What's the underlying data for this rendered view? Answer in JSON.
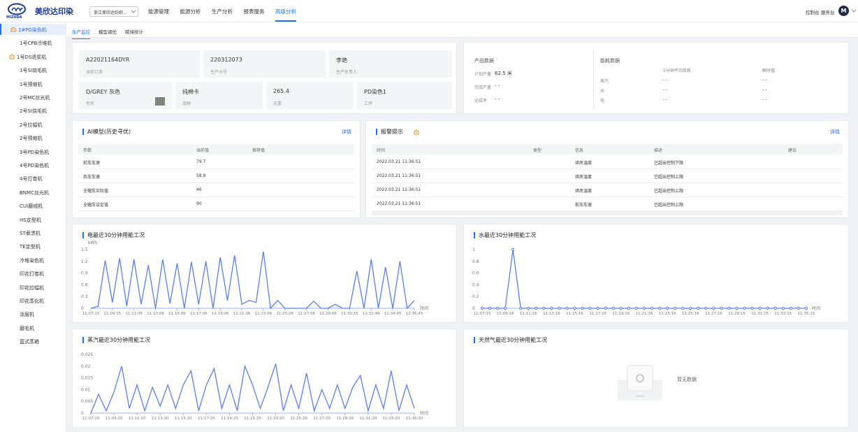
{
  "header": {
    "logo_title": "美欣达印染",
    "logo_sub": "MIZUDA",
    "factory": "浙江美欣达纺织...",
    "nav": [
      "能源管理",
      "能源分析",
      "生产分析",
      "报表服务",
      "高级分析"
    ],
    "right_links": [
      "控制台",
      "服务台"
    ],
    "avatar": "M"
  },
  "sidebar": [
    "1#PD染色机",
    "1号CPB冷堆机",
    "1号DS退浆机",
    "1号SI烧毛机",
    "1号预缩机",
    "2号MC丝光机",
    "2号SI烧毛机",
    "2号拉幅机",
    "2号预缩机",
    "3号PD染色机",
    "4号PD染色机",
    "4号打卷机",
    "BNMC丝光机",
    "CUI磨绒机",
    "HS定型机",
    "ST煮漂机",
    "TE定型机",
    "冷堆染色机",
    "印花打卷机",
    "印花拉幅机",
    "印花蒸化机",
    "涂层机",
    "磨毛机",
    "蓝式蒸箱"
  ],
  "tabs": [
    "生产监控",
    "模型调优",
    "碳排统计"
  ],
  "production": {
    "cards": [
      {
        "value": "A22021164DYR",
        "label": "当前订单"
      },
      {
        "value": "220312073",
        "label": "生产卡号"
      },
      {
        "value": "李艳",
        "label": "生产负责人"
      },
      {
        "value": "D/GREY 灰色",
        "label": "色名"
      },
      {
        "value": "纯棉卡",
        "label": "品种"
      },
      {
        "value": "265.4",
        "label": "克重"
      },
      {
        "value": "PD染色1",
        "label": "工序"
      }
    ]
  },
  "product_data": {
    "title": "产品数据",
    "rows": [
      {
        "label": "计划产量",
        "value": "62.5 米"
      },
      {
        "label": "完成产量",
        "value": "- -"
      },
      {
        "label": "达成率",
        "value": "- -"
      }
    ]
  },
  "energy_data": {
    "title": "能耗数据",
    "headers": [
      "5分钟平均单耗",
      "瞬时值"
    ],
    "rows": [
      [
        "蒸汽",
        "- -",
        "- -"
      ],
      [
        "水",
        "- -",
        "- -"
      ],
      [
        "电",
        "- -",
        "- -"
      ]
    ]
  },
  "ai_model": {
    "title": "AI模型(历史寻优)",
    "link": "详情",
    "headers": [
      "参数",
      "当前值",
      "推荐值"
    ],
    "rows": [
      [
        "前车车速",
        "79.7"
      ],
      [
        "后车车速",
        "58.9"
      ],
      [
        "全幅车实际值",
        "46"
      ],
      [
        "全幅车设定值",
        "90"
      ]
    ]
  },
  "alarms": {
    "title": "报警提示",
    "link": "详情",
    "headers": [
      "时间",
      "类型",
      "信息",
      "描述",
      "建议"
    ],
    "rows": [
      [
        "2022.03.21 11:36:51",
        "烘房温度",
        "已超出控制下限"
      ],
      [
        "2022.03.21 11:36:51",
        "烘房温度",
        "已超出控制上限"
      ],
      [
        "2022.03.21 11:36:51",
        "烘房温度",
        "已超出控制上限"
      ],
      [
        "2022.03.21 11:36:51",
        "前车车速",
        "已超出控制上限"
      ]
    ]
  },
  "chart_data": [
    {
      "type": "line",
      "title": "电最近30分钟用能工况",
      "y_unit": "kWh",
      "x_label": "时间",
      "color": "#5b7fe6",
      "show_points": false,
      "categories": [
        "11:07:15",
        null,
        null,
        "11:09:15",
        null,
        null,
        "11:11:06",
        null,
        null,
        "11:13:06",
        null,
        null,
        "11:15:06",
        null,
        null,
        "11:17:06",
        null,
        null,
        "11:19:06",
        null,
        null,
        "11:21:06",
        null,
        null,
        "11:23:06",
        null,
        null,
        "11:25:06",
        null,
        null,
        "11:27:06",
        null,
        null,
        "11:29:06",
        null,
        null,
        "11:30:55",
        null,
        null,
        "11:32:46",
        null,
        null,
        "11:34:45",
        null,
        null,
        "11:36:45"
      ],
      "values": [
        0,
        0.05,
        1.22,
        0.15,
        1.28,
        0.05,
        1.25,
        0.1,
        1.1,
        0,
        1.25,
        0.12,
        1.15,
        0,
        1.18,
        0.1,
        1.2,
        0,
        1.3,
        0.2,
        1.35,
        0.1,
        0.2,
        0.15,
        1.45,
        0,
        0.2,
        0,
        0,
        0,
        0,
        0.18,
        0,
        0,
        0.1,
        0,
        0,
        0.95,
        0,
        1.25,
        0,
        1.05,
        0,
        1.2,
        0,
        0.2
      ],
      "ylim": [
        0,
        1.5
      ],
      "yticks": [
        0,
        0.3,
        0.6,
        0.9,
        1.2,
        1.5
      ]
    },
    {
      "type": "line",
      "title": "水最近30分钟用能工况",
      "x_label": "时间",
      "color": "#5b7fe6",
      "show_points": true,
      "categories": [
        "11:07:15",
        null,
        null,
        "11:09:16",
        null,
        null,
        "11:11:16",
        null,
        null,
        "11:13:16",
        null,
        null,
        "11:15:16",
        null,
        null,
        "11:17:16",
        null,
        null,
        "11:19:16",
        null,
        null,
        "11:21:16",
        null,
        null,
        "11:23:16",
        null,
        null,
        "11:25:16",
        null,
        null,
        "11:27:16",
        null,
        null,
        "11:29:15",
        null,
        null,
        "11:31:15",
        null,
        null,
        "11:33:15",
        null,
        null,
        "11:35:15"
      ],
      "values": [
        0,
        0,
        0,
        0,
        1,
        0,
        0,
        0,
        0,
        0,
        0,
        0,
        0,
        0,
        0,
        0,
        0,
        0,
        0,
        0,
        0,
        0,
        0,
        0,
        0,
        0,
        0,
        0,
        0,
        0,
        0,
        0,
        0,
        0,
        0,
        0,
        0,
        0,
        0,
        0,
        0,
        0,
        0
      ],
      "ylim": [
        0,
        1
      ],
      "yticks": [
        0,
        0.2,
        0.4,
        0.6,
        0.8,
        1
      ]
    },
    {
      "type": "line",
      "title": "蒸汽最近30分钟用能工况",
      "x_label": "时间",
      "color": "#5b7fe6",
      "show_points": false,
      "categories": [
        "11:07:20",
        null,
        null,
        "11:09:20",
        null,
        null,
        "11:11:20",
        null,
        null,
        "11:13:20",
        null,
        null,
        "11:15:20",
        null,
        null,
        "11:17:20",
        null,
        null,
        "11:19:20",
        null,
        null,
        "11:21:20",
        null,
        null,
        "11:23:20",
        null,
        null,
        "11:25:20",
        null,
        null,
        "11:27:20",
        null,
        null,
        "11:29:20",
        null,
        null,
        "11:31:20",
        null,
        null,
        "11:33:20",
        null,
        null,
        "11:35:20"
      ],
      "values": [
        0,
        0.008,
        0.001,
        0.009,
        0.02,
        0.002,
        0.012,
        0.001,
        0.011,
        0.003,
        0.012,
        0.002,
        0.012,
        0.018,
        0.001,
        0.012,
        0.019,
        0.002,
        0.012,
        0.001,
        0.02,
        0.012,
        0.002,
        0.011,
        0.021,
        0.001,
        0.012,
        0.002,
        0.017,
        0.001,
        0.01,
        0.002,
        0.012,
        0.002,
        0.011,
        0.016,
        0.001,
        0.012,
        0.002,
        0.018,
        0.001,
        0.012,
        0.002
      ],
      "ylim": [
        0,
        0.025
      ],
      "yticks": [
        0,
        0.005,
        0.01,
        0.015,
        0.02,
        0.025
      ]
    },
    {
      "type": "empty",
      "title": "天然气最近30分钟用能工况",
      "empty_text": "暂无数据"
    }
  ]
}
